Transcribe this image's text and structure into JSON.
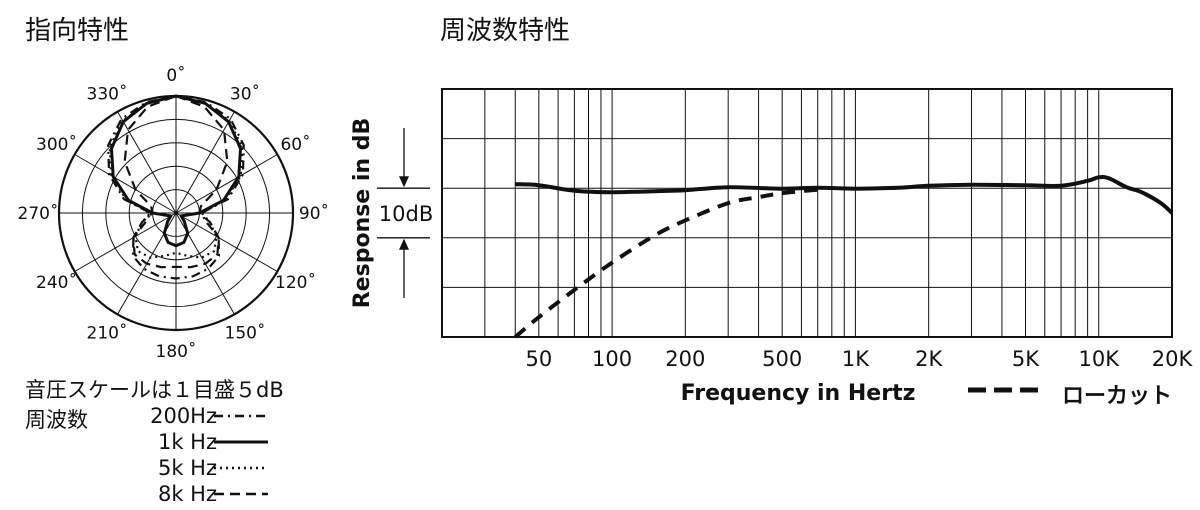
{
  "polar": {
    "title": "指向特性",
    "angle_labels": [
      "0˚",
      "30˚",
      "60˚",
      "90˚",
      "120˚",
      "150˚",
      "180˚",
      "210˚",
      "240˚",
      "270˚",
      "300˚",
      "330˚"
    ],
    "scale_note": "音圧スケールは１目盛５dB",
    "legend_title": "周波数",
    "legend": [
      {
        "label": "200Hz",
        "style": "dash-dot"
      },
      {
        "label": "1k Hz",
        "style": "solid"
      },
      {
        "label": "5k Hz",
        "style": "dotted"
      },
      {
        "label": "8k Hz",
        "style": "dashed"
      }
    ]
  },
  "response": {
    "title": "周波数特性",
    "low_cut_label": "ローカット"
  },
  "chart_data": [
    {
      "type": "line",
      "subtype": "polar",
      "title": "指向特性",
      "angular_ticks": [
        0,
        30,
        60,
        90,
        120,
        150,
        180,
        210,
        240,
        270,
        300,
        330
      ],
      "radial_step_db": 5,
      "radial_rings": 5,
      "series": [
        {
          "name": "200Hz",
          "angle": [
            0,
            15,
            30,
            45,
            60,
            75,
            90,
            105,
            120,
            135,
            150,
            165,
            180
          ],
          "value": [
            1.0,
            0.98,
            0.93,
            0.82,
            0.66,
            0.46,
            0.22,
            0.26,
            0.42,
            0.52,
            0.55,
            0.56,
            0.56
          ]
        },
        {
          "name": "1k Hz",
          "angle": [
            0,
            15,
            30,
            45,
            60,
            75,
            90,
            105,
            120,
            135,
            150,
            165,
            180
          ],
          "value": [
            1.0,
            0.97,
            0.9,
            0.78,
            0.62,
            0.42,
            0.2,
            0.08,
            0.05,
            0.1,
            0.2,
            0.26,
            0.28
          ]
        },
        {
          "name": "5k Hz",
          "angle": [
            0,
            15,
            30,
            45,
            60,
            75,
            90,
            105,
            120,
            135,
            150,
            165,
            180
          ],
          "value": [
            1.0,
            0.97,
            0.91,
            0.8,
            0.64,
            0.44,
            0.22,
            0.3,
            0.4,
            0.46,
            0.44,
            0.38,
            0.34
          ]
        },
        {
          "name": "8k Hz",
          "angle": [
            0,
            15,
            30,
            45,
            60,
            75,
            90,
            105,
            120,
            135,
            150,
            165,
            180
          ],
          "value": [
            1.0,
            0.94,
            0.82,
            0.62,
            0.4,
            0.22,
            0.2,
            0.3,
            0.42,
            0.5,
            0.5,
            0.48,
            0.46
          ]
        }
      ]
    },
    {
      "type": "line",
      "title": "周波数特性",
      "xlabel": "Frequency in Hertz",
      "ylabel": "Response in dB",
      "x_scale": "log",
      "xlim": [
        20,
        20000
      ],
      "x_tick_labels": [
        "50",
        "100",
        "200",
        "500",
        "1K",
        "2K",
        "5K",
        "10K",
        "20K"
      ],
      "x_ticks": [
        50,
        100,
        200,
        500,
        1000,
        2000,
        5000,
        10000,
        20000
      ],
      "ylim": [
        -30,
        20
      ],
      "y_grid_step": 10,
      "scale_marker_label": "10dB",
      "grid": true,
      "series": [
        {
          "name": "",
          "style": "solid",
          "x": [
            40,
            50,
            70,
            100,
            150,
            200,
            300,
            500,
            700,
            1000,
            1500,
            2000,
            3000,
            5000,
            7000,
            9000,
            10000,
            11000,
            13000,
            15000,
            18000,
            20000
          ],
          "y": [
            0.8,
            0.6,
            -0.5,
            -0.8,
            -0.6,
            -0.4,
            0.2,
            -0.1,
            0.1,
            -0.1,
            0.1,
            0.5,
            0.7,
            0.6,
            0.5,
            1.5,
            2.2,
            2.0,
            0.2,
            -0.8,
            -3.0,
            -5.0
          ]
        },
        {
          "name": "ローカット",
          "style": "dashed",
          "x": [
            40,
            50,
            70,
            100,
            150,
            200,
            300,
            400,
            500,
            700
          ],
          "y": [
            -30,
            -26,
            -20.5,
            -15,
            -9.5,
            -6.5,
            -3.0,
            -1.8,
            -1.0,
            -0.3
          ]
        }
      ]
    }
  ]
}
